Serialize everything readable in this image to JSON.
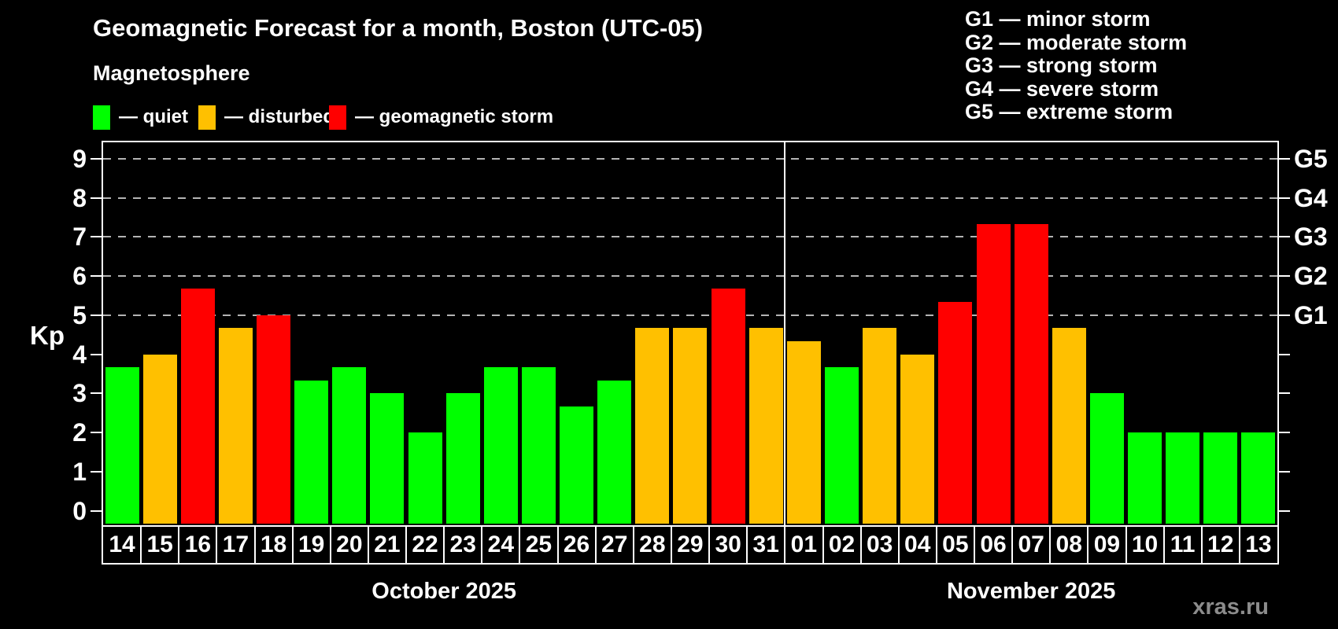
{
  "header": {
    "title": "Geomagnetic Forecast for a month, Boston (UTC-05)",
    "subtitle": "Magnetosphere"
  },
  "legend": {
    "items": [
      {
        "label": "— quiet",
        "status": "quiet",
        "color": "#00ff00"
      },
      {
        "label": "— disturbed",
        "status": "disturbed",
        "color": "#ffc000"
      },
      {
        "label": "— geomagnetic storm",
        "status": "storm",
        "color": "#ff0000"
      }
    ]
  },
  "g_scale_legend": {
    "items": [
      "G1 — minor storm",
      "G2 — moderate storm",
      "G3 — strong storm",
      "G4 — severe storm",
      "G5 — extreme storm"
    ]
  },
  "watermark": "xras.ru",
  "chart_data": {
    "type": "bar",
    "title": "Geomagnetic Forecast for a month, Boston (UTC-05)",
    "ylabel": "Kp",
    "ylim": [
      0,
      9
    ],
    "yticks_left": [
      0,
      1,
      2,
      3,
      4,
      5,
      6,
      7,
      8,
      9
    ],
    "gridlines_at_kp": [
      5,
      6,
      7,
      8,
      9
    ],
    "grid_style": "dashed horizontal lines at storm levels only",
    "right_axis": {
      "labels": [
        "G1",
        "G2",
        "G3",
        "G4",
        "G5"
      ],
      "kp_levels": [
        5,
        6,
        7,
        8,
        9
      ]
    },
    "status_colors": {
      "quiet": "#00ff00",
      "disturbed": "#ffc000",
      "storm": "#ff0000"
    },
    "months": [
      {
        "label": "October 2025",
        "days": [
          {
            "day": "14",
            "kp": 3.67,
            "status": "quiet"
          },
          {
            "day": "15",
            "kp": 4.0,
            "status": "disturbed"
          },
          {
            "day": "16",
            "kp": 5.67,
            "status": "storm"
          },
          {
            "day": "17",
            "kp": 4.67,
            "status": "disturbed"
          },
          {
            "day": "18",
            "kp": 5.0,
            "status": "storm"
          },
          {
            "day": "19",
            "kp": 3.33,
            "status": "quiet"
          },
          {
            "day": "20",
            "kp": 3.67,
            "status": "quiet"
          },
          {
            "day": "21",
            "kp": 3.0,
            "status": "quiet"
          },
          {
            "day": "22",
            "kp": 2.0,
            "status": "quiet"
          },
          {
            "day": "23",
            "kp": 3.0,
            "status": "quiet"
          },
          {
            "day": "24",
            "kp": 3.67,
            "status": "quiet"
          },
          {
            "day": "25",
            "kp": 3.67,
            "status": "quiet"
          },
          {
            "day": "26",
            "kp": 2.67,
            "status": "quiet"
          },
          {
            "day": "27",
            "kp": 3.33,
            "status": "quiet"
          },
          {
            "day": "28",
            "kp": 4.67,
            "status": "disturbed"
          },
          {
            "day": "29",
            "kp": 4.67,
            "status": "disturbed"
          },
          {
            "day": "30",
            "kp": 5.67,
            "status": "storm"
          },
          {
            "day": "31",
            "kp": 4.67,
            "status": "disturbed"
          }
        ]
      },
      {
        "label": "November 2025",
        "days": [
          {
            "day": "01",
            "kp": 4.33,
            "status": "disturbed"
          },
          {
            "day": "02",
            "kp": 3.67,
            "status": "quiet"
          },
          {
            "day": "03",
            "kp": 4.67,
            "status": "disturbed"
          },
          {
            "day": "04",
            "kp": 4.0,
            "status": "disturbed"
          },
          {
            "day": "05",
            "kp": 5.33,
            "status": "storm"
          },
          {
            "day": "06",
            "kp": 7.33,
            "status": "storm"
          },
          {
            "day": "07",
            "kp": 7.33,
            "status": "storm"
          },
          {
            "day": "08",
            "kp": 4.67,
            "status": "disturbed"
          },
          {
            "day": "09",
            "kp": 3.0,
            "status": "quiet"
          },
          {
            "day": "10",
            "kp": 2.0,
            "status": "quiet"
          },
          {
            "day": "11",
            "kp": 2.0,
            "status": "quiet"
          },
          {
            "day": "12",
            "kp": 2.0,
            "status": "quiet"
          },
          {
            "day": "13",
            "kp": 2.0,
            "status": "quiet"
          }
        ]
      }
    ]
  }
}
